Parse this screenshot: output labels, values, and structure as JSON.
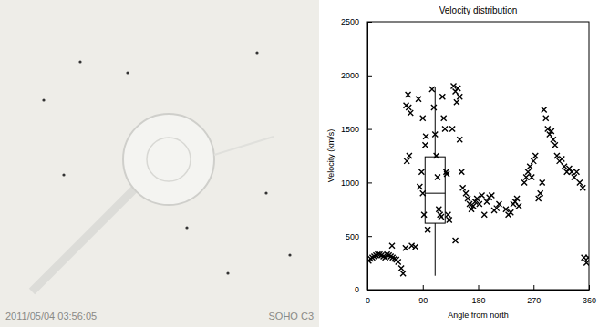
{
  "image": {
    "timestamp": "2011/05/04 03:56:05",
    "instrument": "SOHO C3"
  },
  "chart_data": {
    "type": "scatter",
    "title": "Velocity distribution",
    "x_label": "Angle from north",
    "y_label": "Velocity (km/s)",
    "marker": "x",
    "color": "#000000",
    "grid": false,
    "xlim": [
      0,
      360
    ],
    "xticks": [
      0,
      90,
      180,
      270,
      360
    ],
    "ylim": [
      0,
      2500
    ],
    "yticks": [
      0,
      500,
      1000,
      1500,
      2000,
      2500
    ],
    "x": [
      2,
      5,
      8,
      11,
      14,
      17,
      20,
      23,
      26,
      29,
      32,
      35,
      38,
      40,
      41,
      44,
      47,
      50,
      55,
      58,
      62,
      72,
      78,
      63,
      64,
      66,
      67,
      68,
      70,
      83,
      85,
      88,
      90,
      90,
      92,
      94,
      95,
      98,
      105,
      108,
      110,
      112,
      114,
      116,
      118,
      120,
      122,
      124,
      126,
      128,
      129,
      131,
      133,
      138,
      140,
      143,
      143,
      145,
      147,
      150,
      150,
      153,
      155,
      160,
      163,
      166,
      169,
      172,
      175,
      178,
      182,
      186,
      190,
      194,
      198,
      202,
      206,
      210,
      214,
      225,
      229,
      233,
      237,
      240,
      243,
      246,
      255,
      258,
      261,
      264,
      267,
      270,
      273,
      278,
      281,
      284,
      287,
      290,
      293,
      296,
      299,
      302,
      305,
      308,
      312,
      316,
      320,
      324,
      328,
      332,
      336,
      340,
      345,
      350,
      352,
      356,
      359
    ],
    "values": [
      270,
      290,
      300,
      310,
      320,
      330,
      330,
      320,
      310,
      300,
      330,
      320,
      310,
      410,
      300,
      290,
      280,
      260,
      200,
      150,
      390,
      410,
      400,
      1720,
      1200,
      1820,
      1700,
      1250,
      1650,
      1780,
      960,
      1100,
      1600,
      900,
      700,
      1350,
      1430,
      560,
      1870,
      1700,
      1450,
      1250,
      1050,
      750,
      700,
      680,
      1800,
      1600,
      1500,
      1100,
      1080,
      700,
      650,
      1500,
      1900,
      1850,
      460,
      1750,
      1880,
      1800,
      1400,
      1100,
      950,
      900,
      850,
      800,
      750,
      780,
      820,
      850,
      800,
      880,
      700,
      820,
      860,
      880,
      740,
      760,
      800,
      750,
      700,
      720,
      800,
      820,
      850,
      780,
      1000,
      1050,
      1100,
      1150,
      1050,
      1200,
      1250,
      850,
      900,
      1000,
      1680,
      1600,
      1500,
      1450,
      1480,
      1400,
      1350,
      1250,
      1200,
      1220,
      1150,
      1100,
      1130,
      1100,
      1050,
      1100,
      1000,
      950,
      300,
      250,
      300
    ],
    "box": {
      "x": 110,
      "whisker_low": 130,
      "q1": 620,
      "median": 900,
      "q3": 1240,
      "whisker_high": 1890
    }
  }
}
